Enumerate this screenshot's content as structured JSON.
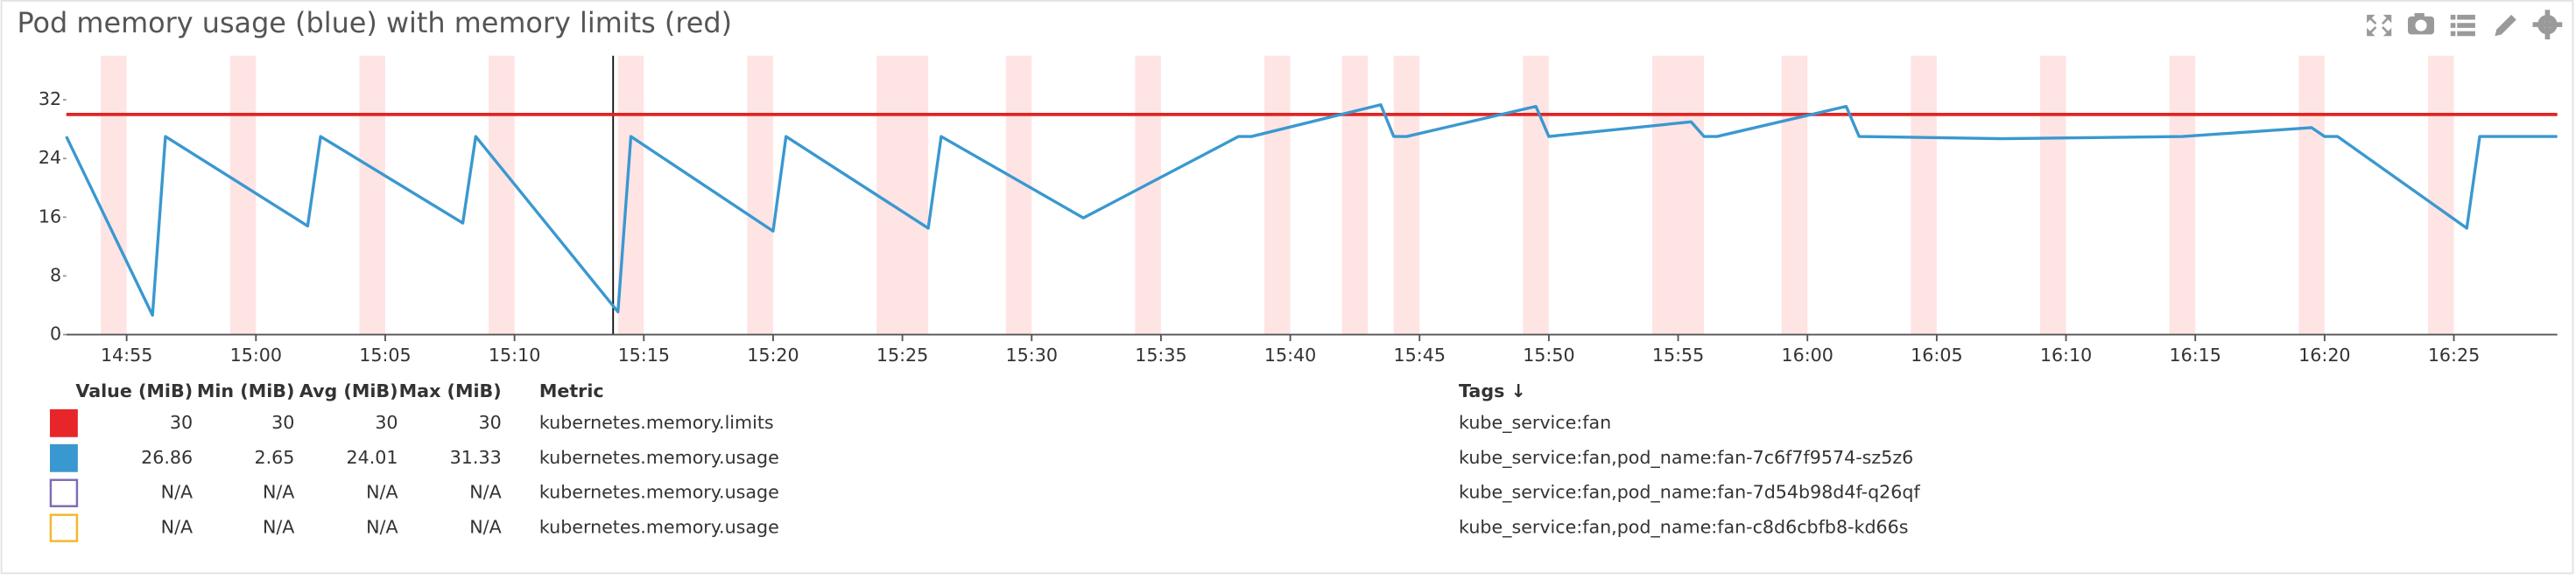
{
  "header": {
    "title": "Pod memory usage (blue) with memory limits (red)"
  },
  "chart_data": {
    "type": "line",
    "x": [
      "14:52:40",
      "14:56:00",
      "14:56:30",
      "15:02:00",
      "15:02:30",
      "15:08:00",
      "15:08:30",
      "15:14:00",
      "15:14:30",
      "15:20:00",
      "15:20:30",
      "15:26:00",
      "15:26:30",
      "15:32:00",
      "15:38:00",
      "15:38:30",
      "15:43:30",
      "15:44:00",
      "15:44:30",
      "15:49:30",
      "15:50:00",
      "15:55:30",
      "15:56:00",
      "15:56:30",
      "16:01:30",
      "16:02:00",
      "16:07:30",
      "16:14:30",
      "16:19:30",
      "16:20:00",
      "16:20:30",
      "16:25:30",
      "16:26:00",
      "16:29:00"
    ],
    "series": [
      {
        "color": "#e02424",
        "values": [
          30,
          30,
          30,
          30,
          30,
          30,
          30,
          30,
          30,
          30,
          30,
          30,
          30,
          30,
          30,
          30,
          30,
          30,
          30,
          30,
          30,
          30,
          30,
          30,
          30,
          30,
          30,
          30,
          30,
          30,
          30,
          30,
          30,
          30
        ]
      },
      {
        "color": "#3a98d0",
        "values": [
          27,
          2.65,
          27,
          14.8,
          27,
          15.2,
          27,
          3.1,
          27,
          14.1,
          27,
          14.5,
          27,
          15.9,
          27,
          27,
          31.33,
          27,
          27,
          31.1,
          27,
          29,
          27,
          27,
          31.1,
          27,
          26.7,
          27,
          28.2,
          27,
          27,
          14.5,
          27,
          27
        ]
      }
    ],
    "bands": [
      [
        "14:54",
        "14:55"
      ],
      [
        "14:59",
        "15:00"
      ],
      [
        "15:04",
        "15:05"
      ],
      [
        "15:09",
        "15:10"
      ],
      [
        "15:14",
        "15:15"
      ],
      [
        "15:19",
        "15:20"
      ],
      [
        "15:24",
        "15:25"
      ],
      [
        "15:25",
        "15:26"
      ],
      [
        "15:29",
        "15:30"
      ],
      [
        "15:34",
        "15:35"
      ],
      [
        "15:39",
        "15:40"
      ],
      [
        "15:42",
        "15:43"
      ],
      [
        "15:44",
        "15:45"
      ],
      [
        "15:49",
        "15:50"
      ],
      [
        "15:54",
        "15:55"
      ],
      [
        "15:55",
        "15:56"
      ],
      [
        "15:59",
        "16:00"
      ],
      [
        "16:04",
        "16:05"
      ],
      [
        "16:09",
        "16:10"
      ],
      [
        "16:14",
        "16:15"
      ],
      [
        "16:19",
        "16:20"
      ],
      [
        "16:24",
        "16:25"
      ]
    ],
    "band_color": "#ff4d4d",
    "xlim": [
      "14:52:40",
      "16:29:00"
    ],
    "xticks": [
      "14:55",
      "15:00",
      "15:05",
      "15:10",
      "15:15",
      "15:20",
      "15:25",
      "15:30",
      "15:35",
      "15:40",
      "15:45",
      "15:50",
      "15:55",
      "16:00",
      "16:05",
      "16:10",
      "16:15",
      "16:20",
      "16:25"
    ],
    "ylim": [
      0,
      38
    ],
    "yticks": [
      0,
      8,
      16,
      24,
      32
    ],
    "grid": false
  },
  "legend": {
    "columns": [
      "Value (MiB)",
      "Min (MiB)",
      "Avg (MiB)",
      "Max (MiB)",
      "Metric",
      "Tags ↓"
    ],
    "rows": [
      {
        "swatch": "#e8262a",
        "swatch_style": "fill",
        "cells": [
          30,
          30,
          30,
          30,
          "kubernetes.memory.limits",
          "kube_service:fan"
        ]
      },
      {
        "swatch": "#3a98d0",
        "swatch_style": "fill",
        "cells": [
          26.86,
          2.65,
          24.01,
          31.33,
          "kubernetes.memory.usage",
          "kube_service:fan,pod_name:fan-7c6f7f9574-sz5z6"
        ]
      },
      {
        "swatch": "#7e6bb5",
        "swatch_style": "outline",
        "cells": [
          "N/A",
          "N/A",
          "N/A",
          "N/A",
          "kubernetes.memory.usage",
          "kube_service:fan,pod_name:fan-7d54b98d4f-q26qf"
        ]
      },
      {
        "swatch": "#f3b82a",
        "swatch_style": "outline",
        "cells": [
          "N/A",
          "N/A",
          "N/A",
          "N/A",
          "kubernetes.memory.usage",
          "kube_service:fan,pod_name:fan-c8d6cbfb8-kd66s"
        ]
      }
    ]
  }
}
